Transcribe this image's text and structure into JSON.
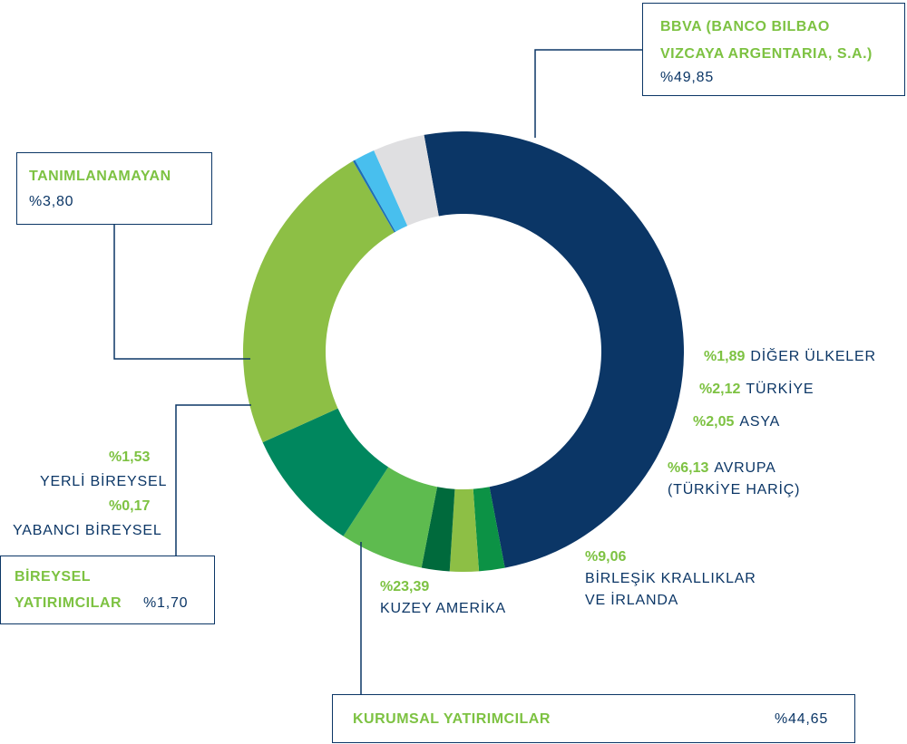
{
  "chart_data": {
    "type": "donut",
    "slices": [
      {
        "label": "BBVA (BANCO BILBAO VIZCAYA ARGENTARIA, S.A.)",
        "value": 49.85,
        "value_text": "%49,85",
        "color": "#0b3666"
      },
      {
        "label": "DİĞER ÜLKELER",
        "value": 1.89,
        "value_text": "%1,89",
        "color": "#0c9245"
      },
      {
        "label": "TÜRKİYE",
        "value": 2.12,
        "value_text": "%2,12",
        "color": "#8dbf45"
      },
      {
        "label": "ASYA",
        "value": 2.05,
        "value_text": "%2,05",
        "color": "#006a3c"
      },
      {
        "label": "AVRUPA (TÜRKİYE HARİÇ)",
        "value": 6.13,
        "value_text": "%6,13",
        "color": "#5ebb4f"
      },
      {
        "label": "BİRLEŞİK KRALLIKLAR VE İRLANDA",
        "value": 9.06,
        "value_text": "%9,06",
        "color": "#00875e"
      },
      {
        "label": "KUZEY AMERİKA",
        "value": 23.39,
        "value_text": "%23,39",
        "color": "#8dbf45"
      },
      {
        "label": "YABANCI BİREYSEL",
        "value": 0.17,
        "value_text": "%0,17",
        "color": "#1e6fb6"
      },
      {
        "label": "YERLİ BİREYSEL",
        "value": 1.53,
        "value_text": "%1,53",
        "color": "#48bfee"
      },
      {
        "label": "TANIMLANAMAYAN",
        "value": 3.8,
        "value_text": "%3,80",
        "color": "#dfdfe1"
      }
    ],
    "groups": [
      {
        "label": "KURUMSAL YATIRIMCILAR",
        "value_text": "%44,65"
      },
      {
        "label": "BİREYSEL YATIRIMCILAR",
        "value_text": "%1,70"
      }
    ]
  },
  "labels": {
    "bbva_line1": "BBVA (BANCO BILBAO",
    "bbva_line2": "VIZCAYA ARGENTARIA, S.A.)",
    "bbva_value": "%49,85",
    "tanim_label": "TANIMLANAMAYAN",
    "tanim_value": "%3,80",
    "diger_pct": "%1,89",
    "diger_name": "DİĞER ÜLKELER",
    "turkiye_pct": "%2,12",
    "turkiye_name": "TÜRKİYE",
    "asya_pct": "%2,05",
    "asya_name": "ASYA",
    "avrupa_pct": "%6,13",
    "avrupa_name": "AVRUPA",
    "avrupa_name2": "(TÜRKİYE HARİÇ)",
    "uk_pct": "%9,06",
    "uk_name1": "BİRLEŞİK KRALLIKLAR",
    "uk_name2": "VE İRLANDA",
    "kuzey_pct": "%23,39",
    "kuzey_name": "KUZEY AMERİKA",
    "yerli_pct": "%1,53",
    "yerli_name": "YERLİ BİREYSEL",
    "yabanci_pct": "%0,17",
    "yabanci_name": "YABANCI BİREYSEL",
    "bireysel_line1": "BİREYSEL",
    "bireysel_line2": "YATIRIMCILAR",
    "bireysel_value": "%1,70",
    "kurumsal_label": "KURUMSAL YATIRIMCILAR",
    "kurumsal_value": "%44,65"
  }
}
